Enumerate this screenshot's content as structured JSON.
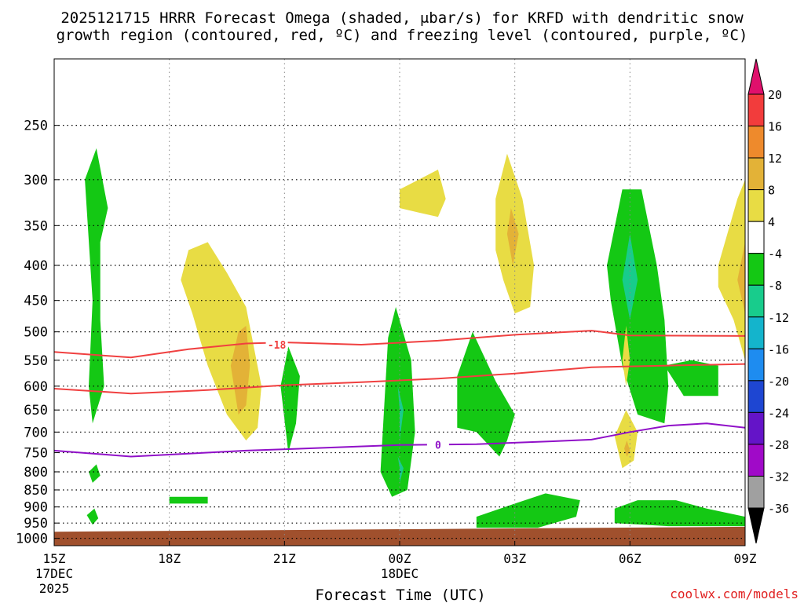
{
  "chart_data": {
    "type": "heatmap",
    "title_line1": "2025121715 HRRR Forecast Omega (shaded, μbar/s) for KRFD with dendritic snow",
    "title_line2": "growth region (contoured, red, ºC) and freezing level (contoured, purple, ºC)",
    "xlabel": "Forecast Time (UTC)",
    "watermark": "coolwx.com/models",
    "x_range_hours": [
      0,
      18
    ],
    "y_levels_hpa": [
      250,
      300,
      350,
      400,
      450,
      500,
      550,
      600,
      650,
      700,
      750,
      800,
      850,
      900,
      950,
      1000
    ],
    "y_range_hpa": [
      200,
      1025
    ],
    "x_ticks": [
      {
        "hour": 0,
        "label": "15Z",
        "sub1": "17DEC",
        "sub2": "2025"
      },
      {
        "hour": 3,
        "label": "18Z"
      },
      {
        "hour": 6,
        "label": "21Z"
      },
      {
        "hour": 9,
        "label": "00Z",
        "sub1": "18DEC"
      },
      {
        "hour": 12,
        "label": "03Z"
      },
      {
        "hour": 15,
        "label": "06Z"
      },
      {
        "hour": 18,
        "label": "09Z"
      }
    ],
    "colorbar": {
      "labels": [
        "20",
        "16",
        "12",
        "8",
        "4",
        "-4",
        "-8",
        "-12",
        "-16",
        "-20",
        "-24",
        "-28",
        "-32",
        "-36"
      ],
      "colors": [
        "#e0106c",
        "#f23c3c",
        "#ee8a2c",
        "#e3b237",
        "#e8dc44",
        "#ffffff",
        "#14c814",
        "#18cc8c",
        "#14b4cc",
        "#1e8cf0",
        "#1e46d2",
        "#6414c8",
        "#a00ac8",
        "#a0a0a0",
        "#000000"
      ]
    },
    "series": [
      {
        "name": "-18C isotherm",
        "color": "#f04040",
        "label": "-18",
        "label_at": [
          5.8,
          522
        ],
        "points": [
          [
            0,
            535
          ],
          [
            2,
            545
          ],
          [
            3.5,
            530
          ],
          [
            5,
            520
          ],
          [
            6,
            518
          ],
          [
            8,
            522
          ],
          [
            10,
            515
          ],
          [
            12,
            505
          ],
          [
            14,
            498
          ],
          [
            15,
            506
          ],
          [
            18,
            507
          ]
        ]
      },
      {
        "name": "-12C isotherm",
        "color": "#f04040",
        "points": [
          [
            0,
            605
          ],
          [
            2,
            615
          ],
          [
            4,
            608
          ],
          [
            6,
            598
          ],
          [
            8,
            592
          ],
          [
            10,
            585
          ],
          [
            12,
            575
          ],
          [
            14,
            563
          ],
          [
            16,
            560
          ],
          [
            18,
            557
          ]
        ]
      },
      {
        "name": "0C freezing level",
        "color": "#9010c8",
        "label": "0",
        "label_at": [
          10,
          731
        ],
        "points": [
          [
            0,
            745
          ],
          [
            2,
            760
          ],
          [
            3,
            755
          ],
          [
            5,
            745
          ],
          [
            7,
            738
          ],
          [
            9,
            731
          ],
          [
            11,
            729
          ],
          [
            13,
            722
          ],
          [
            14,
            718
          ],
          [
            15,
            700
          ],
          [
            16,
            685
          ],
          [
            17,
            680
          ],
          [
            18,
            690
          ]
        ]
      }
    ],
    "shaded_regions": [
      {
        "name": "green-1",
        "color": "#14c814",
        "points": [
          [
            0.9,
            600
          ],
          [
            1.0,
            450
          ],
          [
            0.8,
            300
          ],
          [
            1.1,
            270
          ],
          [
            1.4,
            330
          ],
          [
            1.2,
            370
          ],
          [
            1.2,
            480
          ],
          [
            1.3,
            600
          ],
          [
            1.0,
            680
          ]
        ]
      },
      {
        "name": "green-2",
        "color": "#14c814",
        "points": [
          [
            0.9,
            800
          ],
          [
            1.1,
            780
          ],
          [
            1.2,
            810
          ],
          [
            1.0,
            830
          ]
        ]
      },
      {
        "name": "green-3",
        "color": "#14c814",
        "points": [
          [
            0.85,
            925
          ],
          [
            1.05,
            905
          ],
          [
            1.15,
            935
          ],
          [
            1.0,
            955
          ]
        ]
      },
      {
        "name": "green-4",
        "color": "#14c814",
        "points": [
          [
            3.0,
            870
          ],
          [
            4.0,
            870
          ],
          [
            4.0,
            890
          ],
          [
            3.0,
            890
          ]
        ]
      },
      {
        "name": "green-5",
        "color": "#14c814",
        "points": [
          [
            5.9,
            600
          ],
          [
            6.1,
            525
          ],
          [
            6.4,
            580
          ],
          [
            6.3,
            680
          ],
          [
            6.1,
            750
          ]
        ]
      },
      {
        "name": "green-6",
        "color": "#14c814",
        "points": [
          [
            8.5,
            800
          ],
          [
            8.7,
            510
          ],
          [
            8.9,
            460
          ],
          [
            9.3,
            550
          ],
          [
            9.4,
            700
          ],
          [
            9.2,
            850
          ],
          [
            8.8,
            870
          ]
        ]
      },
      {
        "name": "green-7",
        "color": "#14c814",
        "points": [
          [
            10.5,
            580
          ],
          [
            10.9,
            500
          ],
          [
            11.5,
            590
          ],
          [
            12.0,
            660
          ],
          [
            11.8,
            720
          ],
          [
            11.6,
            760
          ],
          [
            11.0,
            700
          ],
          [
            10.5,
            690
          ]
        ]
      },
      {
        "name": "green-8",
        "color": "#14c814",
        "points": [
          [
            11.0,
            930
          ],
          [
            12.0,
            890
          ],
          [
            12.8,
            860
          ],
          [
            13.7,
            880
          ],
          [
            13.6,
            930
          ],
          [
            12.6,
            965
          ],
          [
            11.0,
            965
          ]
        ]
      },
      {
        "name": "green-9",
        "color": "#14c814",
        "points": [
          [
            14.4,
            400
          ],
          [
            14.8,
            310
          ],
          [
            15.3,
            310
          ],
          [
            15.7,
            400
          ],
          [
            15.9,
            480
          ],
          [
            16.0,
            600
          ],
          [
            15.9,
            680
          ],
          [
            15.2,
            660
          ],
          [
            14.8,
            560
          ],
          [
            14.5,
            450
          ]
        ]
      },
      {
        "name": "green-10",
        "color": "#14c814",
        "points": [
          [
            15.9,
            560
          ],
          [
            16.6,
            550
          ],
          [
            17.3,
            560
          ],
          [
            17.3,
            620
          ],
          [
            16.4,
            620
          ]
        ]
      },
      {
        "name": "green-11",
        "color": "#14c814",
        "points": [
          [
            14.6,
            905
          ],
          [
            15.2,
            880
          ],
          [
            16.2,
            880
          ],
          [
            17.0,
            905
          ],
          [
            18.0,
            930
          ],
          [
            18.0,
            960
          ],
          [
            16.0,
            960
          ],
          [
            14.6,
            950
          ]
        ]
      },
      {
        "name": "teal-1",
        "color": "#18cc8c",
        "points": [
          [
            14.8,
            420
          ],
          [
            15.0,
            360
          ],
          [
            15.2,
            420
          ],
          [
            15.0,
            480
          ]
        ]
      },
      {
        "name": "teal-2",
        "color": "#18cc8c",
        "points": [
          [
            9.0,
            650
          ],
          [
            8.95,
            600
          ],
          [
            9.1,
            650
          ],
          [
            9.0,
            720
          ]
        ]
      },
      {
        "name": "teal-3",
        "color": "#18cc8c",
        "points": [
          [
            9.0,
            790
          ],
          [
            8.95,
            760
          ],
          [
            9.1,
            790
          ],
          [
            9.0,
            830
          ]
        ]
      },
      {
        "name": "yellow-1",
        "color": "#e8dc44",
        "points": [
          [
            3.3,
            420
          ],
          [
            3.5,
            380
          ],
          [
            4.0,
            370
          ],
          [
            4.5,
            410
          ],
          [
            5.0,
            460
          ],
          [
            5.4,
            600
          ],
          [
            5.3,
            690
          ],
          [
            5.0,
            720
          ],
          [
            4.5,
            660
          ],
          [
            4.0,
            560
          ],
          [
            3.6,
            470
          ]
        ]
      },
      {
        "name": "orange-1",
        "color": "#e3b237",
        "points": [
          [
            4.6,
            560
          ],
          [
            4.8,
            500
          ],
          [
            5.0,
            490
          ],
          [
            5.1,
            560
          ],
          [
            5.0,
            640
          ],
          [
            4.8,
            660
          ]
        ]
      },
      {
        "name": "yellow-2",
        "color": "#e8dc44",
        "points": [
          [
            9.0,
            310
          ],
          [
            9.5,
            300
          ],
          [
            10.0,
            290
          ],
          [
            10.2,
            320
          ],
          [
            10.0,
            340
          ],
          [
            9.5,
            335
          ],
          [
            9.0,
            330
          ]
        ]
      },
      {
        "name": "yellow-3",
        "color": "#e8dc44",
        "points": [
          [
            11.5,
            320
          ],
          [
            11.8,
            275
          ],
          [
            12.2,
            320
          ],
          [
            12.5,
            400
          ],
          [
            12.4,
            460
          ],
          [
            12.0,
            470
          ],
          [
            11.7,
            420
          ],
          [
            11.5,
            380
          ]
        ]
      },
      {
        "name": "orange-2",
        "color": "#e3b237",
        "points": [
          [
            11.8,
            360
          ],
          [
            11.9,
            330
          ],
          [
            12.1,
            360
          ],
          [
            11.95,
            400
          ]
        ]
      },
      {
        "name": "yellow-4",
        "color": "#e8dc44",
        "points": [
          [
            14.8,
            550
          ],
          [
            14.9,
            490
          ],
          [
            15.0,
            550
          ],
          [
            14.9,
            600
          ]
        ]
      },
      {
        "name": "yellow-5",
        "color": "#e8dc44",
        "points": [
          [
            14.6,
            710
          ],
          [
            14.9,
            650
          ],
          [
            15.2,
            700
          ],
          [
            15.1,
            770
          ],
          [
            14.8,
            790
          ]
        ]
      },
      {
        "name": "orange-3",
        "color": "#e3b237",
        "points": [
          [
            14.85,
            740
          ],
          [
            14.92,
            720
          ],
          [
            15.0,
            745
          ],
          [
            14.92,
            760
          ]
        ]
      },
      {
        "name": "yellow-6",
        "color": "#e8dc44",
        "points": [
          [
            17.3,
            400
          ],
          [
            17.8,
            320
          ],
          [
            18.0,
            300
          ],
          [
            18.0,
            550
          ],
          [
            17.7,
            480
          ],
          [
            17.3,
            430
          ]
        ]
      },
      {
        "name": "orange-4",
        "color": "#e3b237",
        "points": [
          [
            17.8,
            420
          ],
          [
            18.0,
            370
          ],
          [
            18.0,
            470
          ]
        ]
      }
    ]
  }
}
